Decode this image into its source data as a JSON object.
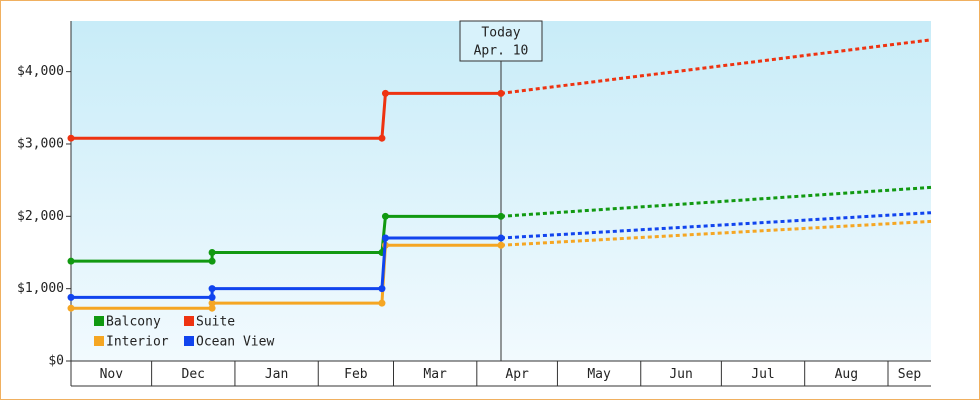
{
  "chart_data": {
    "type": "line",
    "xlim": [
      0,
      320
    ],
    "ylim": [
      0,
      4700
    ],
    "yticks": [
      {
        "value": 0,
        "label": "$0"
      },
      {
        "value": 1000,
        "label": "$1,000"
      },
      {
        "value": 2000,
        "label": "$2,000"
      },
      {
        "value": 3000,
        "label": "$3,000"
      },
      {
        "value": 4000,
        "label": "$4,000"
      }
    ],
    "xticks": [
      {
        "value": 0,
        "label": "Nov"
      },
      {
        "value": 30,
        "label": "Dec"
      },
      {
        "value": 61,
        "label": "Jan"
      },
      {
        "value": 92,
        "label": "Feb"
      },
      {
        "value": 120,
        "label": "Mar"
      },
      {
        "value": 151,
        "label": "Apr"
      },
      {
        "value": 181,
        "label": "May"
      },
      {
        "value": 212,
        "label": "Jun"
      },
      {
        "value": 242,
        "label": "Jul"
      },
      {
        "value": 273,
        "label": "Aug"
      },
      {
        "value": 304,
        "label": "Sep"
      }
    ],
    "today": {
      "x": 160,
      "label": [
        "Today",
        "Apr. 10"
      ]
    },
    "series": [
      {
        "name": "Balcony",
        "color": "#119911",
        "x": [
          0,
          52.5,
          52.5,
          115.7,
          117,
          160
        ],
        "values": [
          1380,
          1380,
          1500,
          1500,
          2000,
          2000
        ],
        "forecast_x": [
          160,
          320
        ],
        "forecast_values": [
          2000,
          2400
        ]
      },
      {
        "name": "Suite",
        "color": "#ee3311",
        "x": [
          0,
          115.7,
          117,
          160
        ],
        "values": [
          3080,
          3080,
          3700,
          3700
        ],
        "forecast_x": [
          160,
          320
        ],
        "forecast_values": [
          3700,
          4440
        ]
      },
      {
        "name": "Interior",
        "color": "#f5a623",
        "x": [
          0,
          52.5,
          52.5,
          115.7,
          117,
          160
        ],
        "values": [
          730,
          730,
          800,
          800,
          1600,
          1600
        ],
        "forecast_x": [
          160,
          320
        ],
        "forecast_values": [
          1600,
          1930
        ]
      },
      {
        "name": "Ocean View",
        "color": "#1144ee",
        "x": [
          0,
          52.5,
          52.5,
          115.7,
          117,
          160
        ],
        "values": [
          880,
          880,
          1000,
          1000,
          1700,
          1700
        ],
        "forecast_x": [
          160,
          320
        ],
        "forecast_values": [
          1700,
          2050
        ]
      }
    ]
  }
}
